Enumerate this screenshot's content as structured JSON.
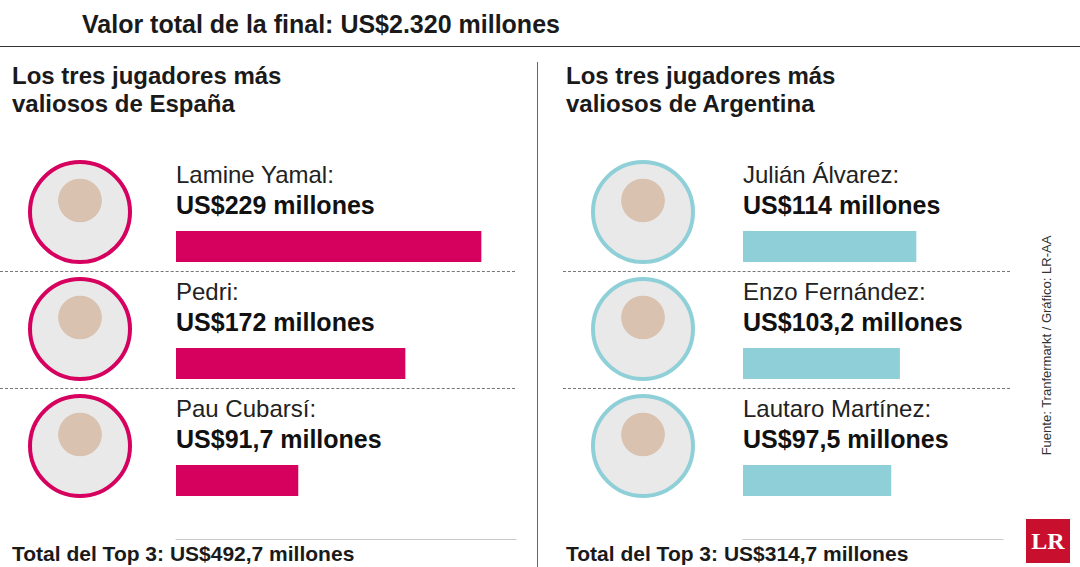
{
  "header": {
    "title": "Valor total de la final: US$2.320 millones"
  },
  "source": "Fuente: Tranfermarkt / Gráfico: LR-AA",
  "logo": "LR",
  "chart_data": [
    {
      "type": "bar",
      "orientation": "horizontal",
      "title": "Los tres jugadores más valiosos de España",
      "categories": [
        "Lamine Yamal:",
        "Pedri:",
        "Pau Cubarsí:"
      ],
      "values": [
        229,
        172,
        91.7
      ],
      "value_labels": [
        "US$229 millones",
        "US$172 millones",
        "US$91,7 millones"
      ],
      "color": "#d6005f",
      "xlim": [
        0,
        255
      ],
      "tick_labels": false,
      "annotation": "Total del Top 3: US$492,7 millones"
    },
    {
      "type": "bar",
      "orientation": "horizontal",
      "title": "Los tres jugadores más valiosos de Argentina",
      "categories": [
        "Julián Álvarez:",
        "Enzo Fernández:",
        "Lautaro Martínez:"
      ],
      "values": [
        114,
        103.2,
        97.5
      ],
      "value_labels": [
        "US$114 millones",
        "US$103,2 millones",
        "US$97,5 millones"
      ],
      "color": "#8fd0d8",
      "xlim": [
        0,
        171
      ],
      "tick_labels": false,
      "annotation": "Total del Top 3: US$314,7 millones"
    }
  ]
}
